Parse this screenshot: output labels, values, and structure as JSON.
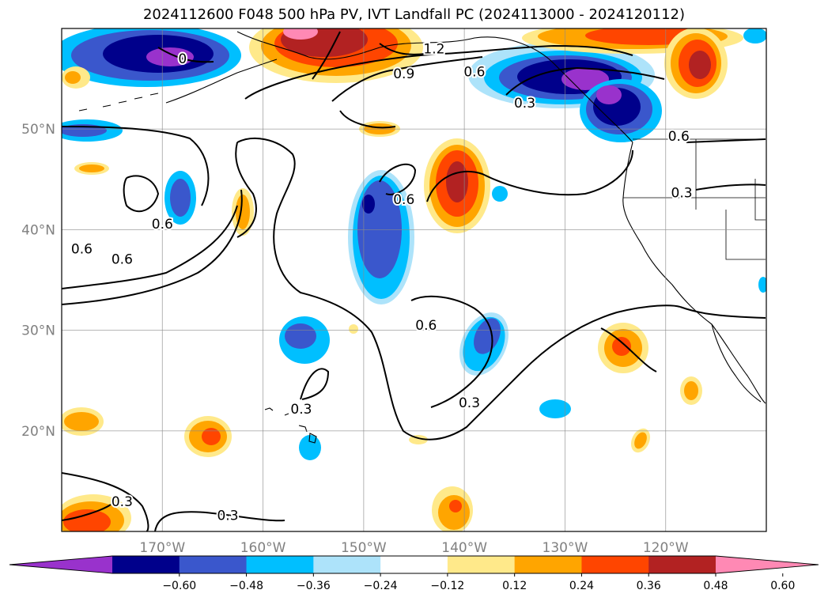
{
  "title": "2024112600 F048 500 hPa PV, IVT Landfall PC (2024113000 - 2024120112)",
  "map": {
    "lon_range": [
      -180,
      -110
    ],
    "lat_range": [
      10,
      60
    ],
    "lat_ticks": [
      {
        "value": 50,
        "label": "50°N"
      },
      {
        "value": 40,
        "label": "40°N"
      },
      {
        "value": 30,
        "label": "30°N"
      },
      {
        "value": 20,
        "label": "20°N"
      }
    ],
    "lon_ticks": [
      {
        "value": -170,
        "label": "170°W"
      },
      {
        "value": -160,
        "label": "160°W"
      },
      {
        "value": -150,
        "label": "150°W"
      },
      {
        "value": -140,
        "label": "140°W"
      },
      {
        "value": -130,
        "label": "130°W"
      },
      {
        "value": -120,
        "label": "120°W"
      }
    ],
    "grid": true,
    "contour_labels": [
      {
        "text": "0",
        "lon": -168,
        "lat": 57
      },
      {
        "text": "1.2",
        "lon": -143,
        "lat": 58
      },
      {
        "text": "0.9",
        "lon": -146,
        "lat": 55.5
      },
      {
        "text": "0.6",
        "lon": -139,
        "lat": 55.7
      },
      {
        "text": "0.3",
        "lon": -134,
        "lat": 52.6
      },
      {
        "text": "0.6",
        "lon": -118.7,
        "lat": 49.3
      },
      {
        "text": "0.3",
        "lon": -118.4,
        "lat": 43.7
      },
      {
        "text": "0.6",
        "lon": -146,
        "lat": 43
      },
      {
        "text": "0.6",
        "lon": -170,
        "lat": 40.6
      },
      {
        "text": "0.6",
        "lon": -174,
        "lat": 37.1
      },
      {
        "text": "0.6",
        "lon": -178,
        "lat": 38.1
      },
      {
        "text": "0.6",
        "lon": -143.8,
        "lat": 30.5
      },
      {
        "text": "0.3",
        "lon": -139.5,
        "lat": 22.8
      },
      {
        "text": "0.3",
        "lon": -156.2,
        "lat": 22.2
      },
      {
        "text": "0.3",
        "lon": -174,
        "lat": 13
      },
      {
        "text": "0.3",
        "lon": -163.5,
        "lat": 11.6
      }
    ]
  },
  "colorbar": {
    "colors": [
      "#9932CC",
      "#00008B",
      "#3A57CC",
      "#00BFFF",
      "#ADE3FA",
      "#FFFFFF",
      "#FFE98A",
      "#FFA500",
      "#FF4500",
      "#B22222",
      "#FF89B4"
    ],
    "tick_labels": [
      "−0.60",
      "−0.48",
      "−0.36",
      "−0.24",
      "−0.12",
      "0.12",
      "0.24",
      "0.36",
      "0.48",
      "0.60"
    ],
    "extend": "both"
  },
  "chart_data": {
    "type": "contour map",
    "title": "2024112600 F048 500 hPa PV, IVT Landfall PC (2024113000 - 2024120112)",
    "filled_field_levels": [
      -0.6,
      -0.48,
      -0.36,
      -0.24,
      -0.12,
      0.12,
      0.24,
      0.36,
      0.48,
      0.6
    ],
    "line_contour_values": [
      0.3,
      0.6,
      0.9,
      1.2
    ],
    "lon_range": [
      -180,
      -110
    ],
    "lat_range": [
      10,
      60
    ],
    "features": [
      {
        "sign": "negative",
        "peak": -0.6,
        "center_lon": -130,
        "center_lat": 55
      },
      {
        "sign": "negative",
        "peak": -0.6,
        "center_lon": -170,
        "center_lat": 57
      },
      {
        "sign": "negative",
        "peak": -0.48,
        "center_lon": -148,
        "center_lat": 40
      },
      {
        "sign": "negative",
        "peak": -0.36,
        "center_lon": -135,
        "center_lat": 28
      },
      {
        "sign": "negative",
        "peak": -0.36,
        "center_lon": -156,
        "center_lat": 29
      },
      {
        "sign": "negative",
        "peak": -0.36,
        "center_lon": -170,
        "center_lat": 43
      },
      {
        "sign": "positive",
        "peak": 0.6,
        "center_lon": -152,
        "center_lat": 58
      },
      {
        "sign": "positive",
        "peak": 0.48,
        "center_lon": -138,
        "center_lat": 43
      },
      {
        "sign": "positive",
        "peak": 0.48,
        "center_lon": -116,
        "center_lat": 56
      },
      {
        "sign": "positive",
        "peak": 0.36,
        "center_lon": -125,
        "center_lat": 28
      },
      {
        "sign": "positive",
        "peak": 0.36,
        "center_lon": -176,
        "center_lat": 12
      },
      {
        "sign": "positive",
        "peak": 0.36,
        "center_lon": -164.5,
        "center_lat": 19.5
      }
    ]
  }
}
